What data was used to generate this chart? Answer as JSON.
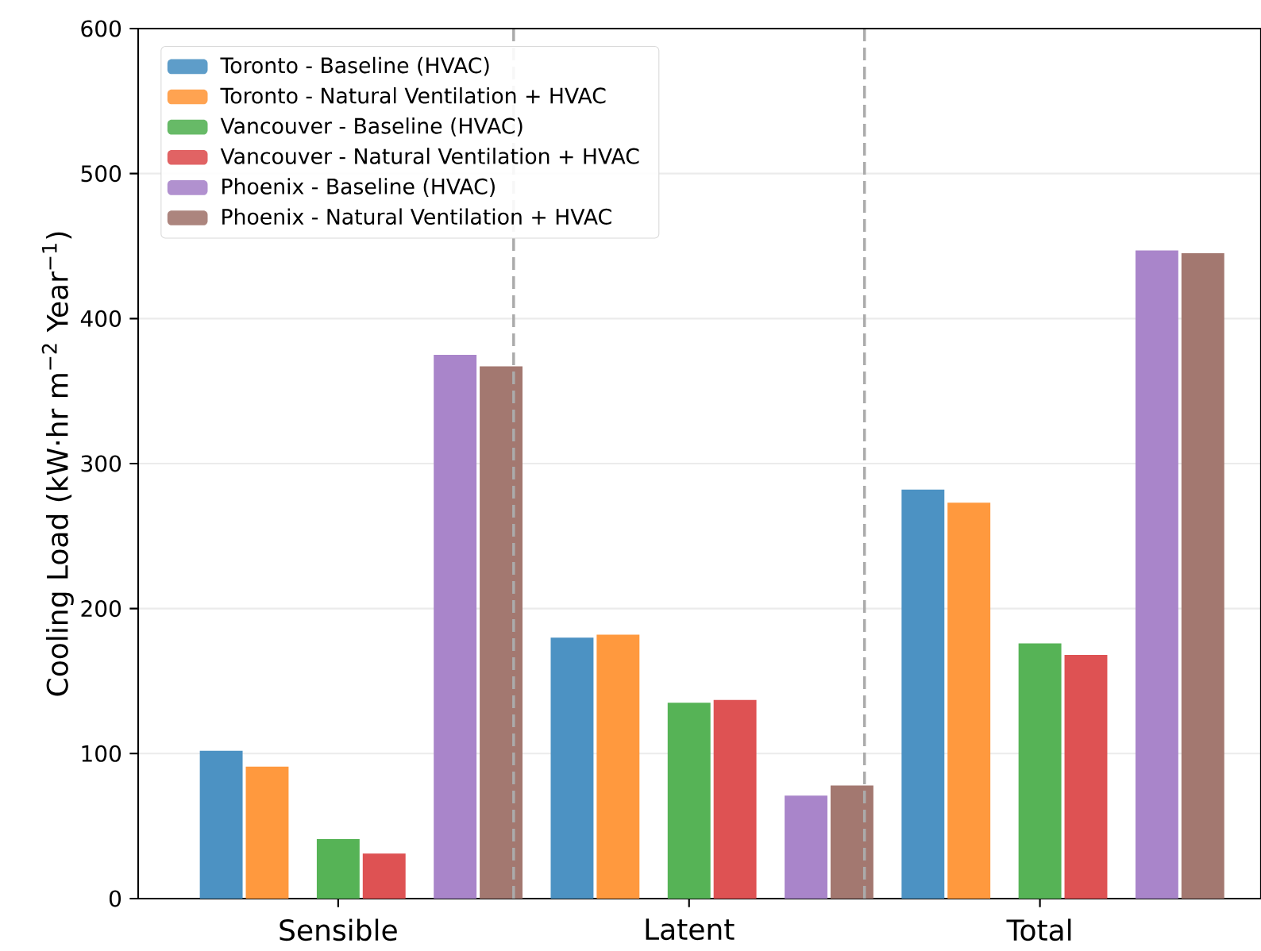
{
  "chart_data": {
    "type": "bar",
    "ylabel": "Cooling Load (kW·hr m$^{−2}$ Year$^{−1}$)",
    "categories": [
      "Sensible",
      "Latent",
      "Total"
    ],
    "series": [
      {
        "name": "Toronto - Baseline (HVAC)",
        "color": "#4c92c3",
        "values": [
          102,
          180,
          282
        ]
      },
      {
        "name": "Toronto - Natural Ventilation + HVAC",
        "color": "#ff993e",
        "values": [
          91,
          182,
          273
        ]
      },
      {
        "name": "Vancouver - Baseline (HVAC)",
        "color": "#56b356",
        "values": [
          41,
          135,
          176
        ]
      },
      {
        "name": "Vancouver - Natural Ventilation + HVAC",
        "color": "#de5253",
        "values": [
          31,
          137,
          168
        ]
      },
      {
        "name": "Phoenix - Baseline (HVAC)",
        "color": "#a985ca",
        "values": [
          375,
          71,
          447
        ]
      },
      {
        "name": "Phoenix - Natural Ventilation + HVAC",
        "color": "#a37870",
        "values": [
          367,
          78,
          445
        ]
      }
    ],
    "ylim": [
      0,
      600
    ],
    "yticks": [
      0,
      100,
      200,
      300,
      400,
      500,
      600
    ],
    "grid": "y",
    "legend": "top left"
  }
}
